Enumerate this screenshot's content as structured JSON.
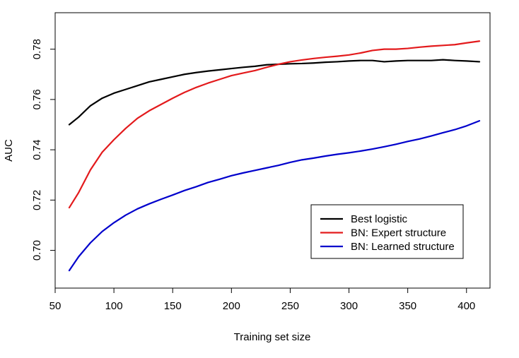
{
  "chart_data": {
    "type": "line",
    "title": "",
    "xlabel": "Training set size",
    "ylabel": "AUC",
    "xlim": [
      50,
      420
    ],
    "ylim": [
      0.685,
      0.7945
    ],
    "xticks": [
      50,
      100,
      150,
      200,
      250,
      300,
      350,
      400
    ],
    "xtick_labels": [
      "50",
      "100",
      "150",
      "200",
      "250",
      "300",
      "350",
      "400"
    ],
    "yticks": [
      0.7,
      0.72,
      0.74,
      0.76,
      0.78
    ],
    "ytick_labels": [
      "0.70",
      "0.72",
      "0.74",
      "0.76",
      "0.78"
    ],
    "grid": false,
    "legend_position": "bottom-right",
    "x": [
      62,
      70,
      80,
      90,
      100,
      110,
      120,
      130,
      140,
      150,
      160,
      170,
      180,
      190,
      200,
      210,
      220,
      230,
      240,
      250,
      260,
      270,
      280,
      290,
      300,
      310,
      320,
      330,
      340,
      350,
      360,
      370,
      380,
      390,
      400,
      411
    ],
    "series": [
      {
        "name": "Best logistic",
        "color": "#000000",
        "values": [
          0.75,
          0.753,
          0.7575,
          0.7605,
          0.7625,
          0.764,
          0.7655,
          0.767,
          0.768,
          0.769,
          0.77,
          0.7707,
          0.7713,
          0.7718,
          0.7723,
          0.7728,
          0.7732,
          0.7738,
          0.774,
          0.7742,
          0.7743,
          0.7745,
          0.7748,
          0.775,
          0.7753,
          0.7755,
          0.7755,
          0.775,
          0.7753,
          0.7755,
          0.7755,
          0.7755,
          0.7758,
          0.7755,
          0.7753,
          0.775
        ]
      },
      {
        "name": "BN: Expert structure",
        "color": "#e31a1c",
        "values": [
          0.717,
          0.723,
          0.732,
          0.739,
          0.744,
          0.7485,
          0.7525,
          0.7555,
          0.758,
          0.7605,
          0.7628,
          0.7648,
          0.7665,
          0.768,
          0.7695,
          0.7705,
          0.7715,
          0.7728,
          0.774,
          0.775,
          0.7757,
          0.7763,
          0.7768,
          0.7772,
          0.7777,
          0.7785,
          0.7795,
          0.78,
          0.78,
          0.7803,
          0.7808,
          0.7812,
          0.7815,
          0.7818,
          0.7825,
          0.7832
        ]
      },
      {
        "name": "BN: Learned structure",
        "color": "#0000cc",
        "values": [
          0.692,
          0.6975,
          0.703,
          0.7075,
          0.711,
          0.714,
          0.7165,
          0.7185,
          0.7203,
          0.722,
          0.7238,
          0.7253,
          0.727,
          0.7283,
          0.7297,
          0.7308,
          0.7318,
          0.7328,
          0.7338,
          0.735,
          0.736,
          0.7367,
          0.7375,
          0.7382,
          0.7388,
          0.7395,
          0.7403,
          0.7412,
          0.7422,
          0.7433,
          0.7443,
          0.7455,
          0.7468,
          0.748,
          0.7495,
          0.7515
        ]
      }
    ]
  }
}
